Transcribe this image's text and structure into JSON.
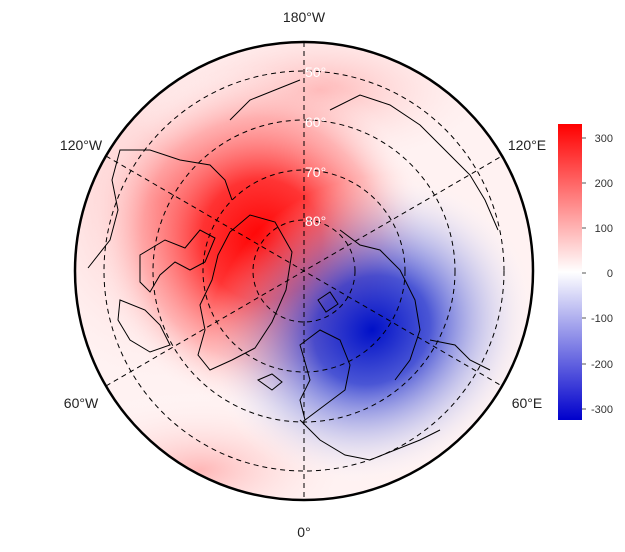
{
  "map": {
    "projection": "north polar stereographic",
    "longitude_labels": [
      {
        "id": "lon-180w",
        "text": "180°W"
      },
      {
        "id": "lon-120w",
        "text": "120°W"
      },
      {
        "id": "lon-120e",
        "text": "120°E"
      },
      {
        "id": "lon-60w",
        "text": "60°W"
      },
      {
        "id": "lon-60e",
        "text": "60°E"
      },
      {
        "id": "lon-0",
        "text": "0°"
      }
    ],
    "latitude_labels": [
      "50°",
      "60°",
      "70°",
      "80°"
    ],
    "grid": true,
    "colors": {
      "positive": "#ff0000",
      "neutral": "#ffffff",
      "negative": "#0000cc",
      "grid": "#000000",
      "coastline": "#000000"
    },
    "anomaly_centers": [
      {
        "name": "positive",
        "sign": "+",
        "value_approx": 320
      },
      {
        "name": "negative",
        "sign": "-",
        "value_approx": -300
      }
    ]
  },
  "colorbar": {
    "ticks": [
      "300",
      "200",
      "100",
      "0",
      "-100",
      "-200",
      "-300"
    ],
    "range": [
      -330,
      330
    ],
    "colors": [
      "#0000cc",
      "#ffffff",
      "#ff0000"
    ]
  }
}
